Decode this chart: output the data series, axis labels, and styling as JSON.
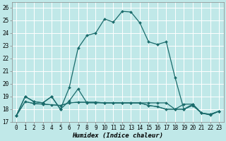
{
  "title": "",
  "xlabel": "Humidex (Indice chaleur)",
  "bg_color": "#c0e8e8",
  "grid_color": "#ffffff",
  "line_color": "#1a6b6b",
  "xlim": [
    -0.5,
    23.5
  ],
  "ylim": [
    17,
    26.4
  ],
  "xticks": [
    0,
    1,
    2,
    3,
    4,
    5,
    6,
    7,
    8,
    9,
    10,
    11,
    12,
    13,
    14,
    15,
    16,
    17,
    18,
    19,
    20,
    21,
    22,
    23
  ],
  "yticks": [
    17,
    18,
    19,
    20,
    21,
    22,
    23,
    24,
    25,
    26
  ],
  "main_y": [
    17.5,
    19.0,
    18.6,
    18.5,
    19.0,
    18.0,
    19.7,
    22.8,
    23.8,
    24.0,
    25.1,
    24.85,
    25.7,
    25.65,
    24.8,
    23.3,
    23.1,
    23.3,
    20.5,
    18.0,
    18.4,
    17.7,
    17.6,
    17.85
  ],
  "curve2_y": [
    17.5,
    19.0,
    18.6,
    18.5,
    19.0,
    18.0,
    18.65,
    19.6,
    18.5,
    18.5,
    18.5,
    18.5,
    18.5,
    18.5,
    18.5,
    18.5,
    18.5,
    18.5,
    18.0,
    18.4,
    18.4,
    17.7,
    17.6,
    17.85
  ],
  "curve3_y": [
    17.5,
    18.6,
    18.45,
    18.4,
    18.35,
    18.3,
    18.5,
    18.55,
    18.55,
    18.55,
    18.5,
    18.5,
    18.5,
    18.5,
    18.5,
    18.3,
    18.2,
    18.0,
    18.0,
    18.0,
    18.3,
    17.7,
    17.55,
    17.85
  ],
  "curve4_y": [
    17.5,
    18.6,
    18.45,
    18.4,
    18.35,
    18.3,
    18.5,
    18.55,
    18.55,
    18.55,
    18.5,
    18.5,
    18.5,
    18.5,
    18.5,
    18.3,
    18.2,
    18.0,
    18.0,
    18.0,
    18.3,
    17.7,
    17.55,
    17.85
  ]
}
